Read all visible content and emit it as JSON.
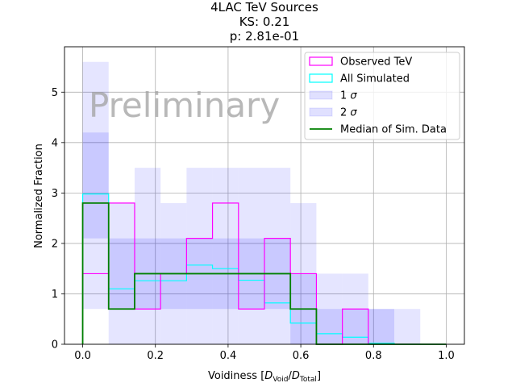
{
  "chart_data": {
    "type": "histogram",
    "title_lines": [
      "4LAC TeV Sources",
      "KS: 0.21",
      "p: 2.81e-01"
    ],
    "xlabel_main": "Voidiness [",
    "xlabel_num": "D",
    "xlabel_num_sub": "Void",
    "xlabel_slash": "/",
    "xlabel_den": "D",
    "xlabel_den_sub": "Total",
    "xlabel_close": "]",
    "ylabel": "Normalized Fraction",
    "watermark": "Preliminary",
    "xlim": [
      -0.05,
      1.05
    ],
    "ylim": [
      0,
      5.9
    ],
    "xticks": [
      0.0,
      0.2,
      0.4,
      0.6,
      0.8,
      1.0
    ],
    "xtick_labels": [
      "0.0",
      "0.2",
      "0.4",
      "0.6",
      "0.8",
      "1.0"
    ],
    "yticks": [
      0,
      1,
      2,
      3,
      4,
      5
    ],
    "ytick_labels": [
      "0",
      "1",
      "2",
      "3",
      "4",
      "5"
    ],
    "grid": true,
    "legend_position": "upper right",
    "bin_edges": [
      0.0,
      0.0714,
      0.1429,
      0.2143,
      0.2857,
      0.3571,
      0.4286,
      0.5,
      0.5714,
      0.6429,
      0.7143,
      0.7857,
      0.8571,
      0.9286,
      1.0
    ],
    "series": [
      {
        "name": "Observed TeV",
        "kind": "step",
        "color": "#ff00ff",
        "values": [
          1.4,
          2.8,
          0.7,
          1.4,
          2.1,
          2.8,
          0.7,
          2.1,
          1.4,
          0.0,
          0.7,
          0.0,
          0.0,
          0.0
        ]
      },
      {
        "name": "All Simulated",
        "kind": "step",
        "color": "#00ffff",
        "values": [
          2.98,
          1.1,
          1.26,
          1.26,
          1.57,
          1.5,
          1.27,
          0.82,
          0.42,
          0.21,
          0.14,
          0.02,
          0.0,
          0.0
        ]
      },
      {
        "name": "1 σ",
        "kind": "band",
        "color": "#0000ff",
        "opacity": 0.12,
        "lower": [
          2.1,
          0.7,
          0.7,
          0.7,
          0.7,
          0.7,
          0.7,
          0.7,
          0.0,
          0.0,
          0.0,
          0.0,
          0.0,
          0.0
        ],
        "upper": [
          4.2,
          2.1,
          2.1,
          2.1,
          2.1,
          2.1,
          2.1,
          2.1,
          1.4,
          0.7,
          0.7,
          0.7,
          0.0,
          0.0
        ]
      },
      {
        "name": "2 σ",
        "kind": "band",
        "color": "#0000ff",
        "opacity": 0.1,
        "lower": [
          0.7,
          0.0,
          0.0,
          0.0,
          0.0,
          0.0,
          0.0,
          0.0,
          0.0,
          0.0,
          0.0,
          0.0,
          0.0,
          0.0
        ],
        "upper": [
          5.6,
          2.8,
          3.5,
          2.8,
          3.5,
          3.5,
          3.5,
          3.5,
          2.8,
          1.4,
          1.4,
          0.7,
          0.7,
          0.0
        ]
      },
      {
        "name": "Median of Sim. Data",
        "kind": "step",
        "color": "#008000",
        "values": [
          2.8,
          0.7,
          1.4,
          1.4,
          1.4,
          1.4,
          1.4,
          1.4,
          0.7,
          0.0,
          0.0,
          0.0,
          0.0,
          0.0
        ]
      }
    ]
  }
}
